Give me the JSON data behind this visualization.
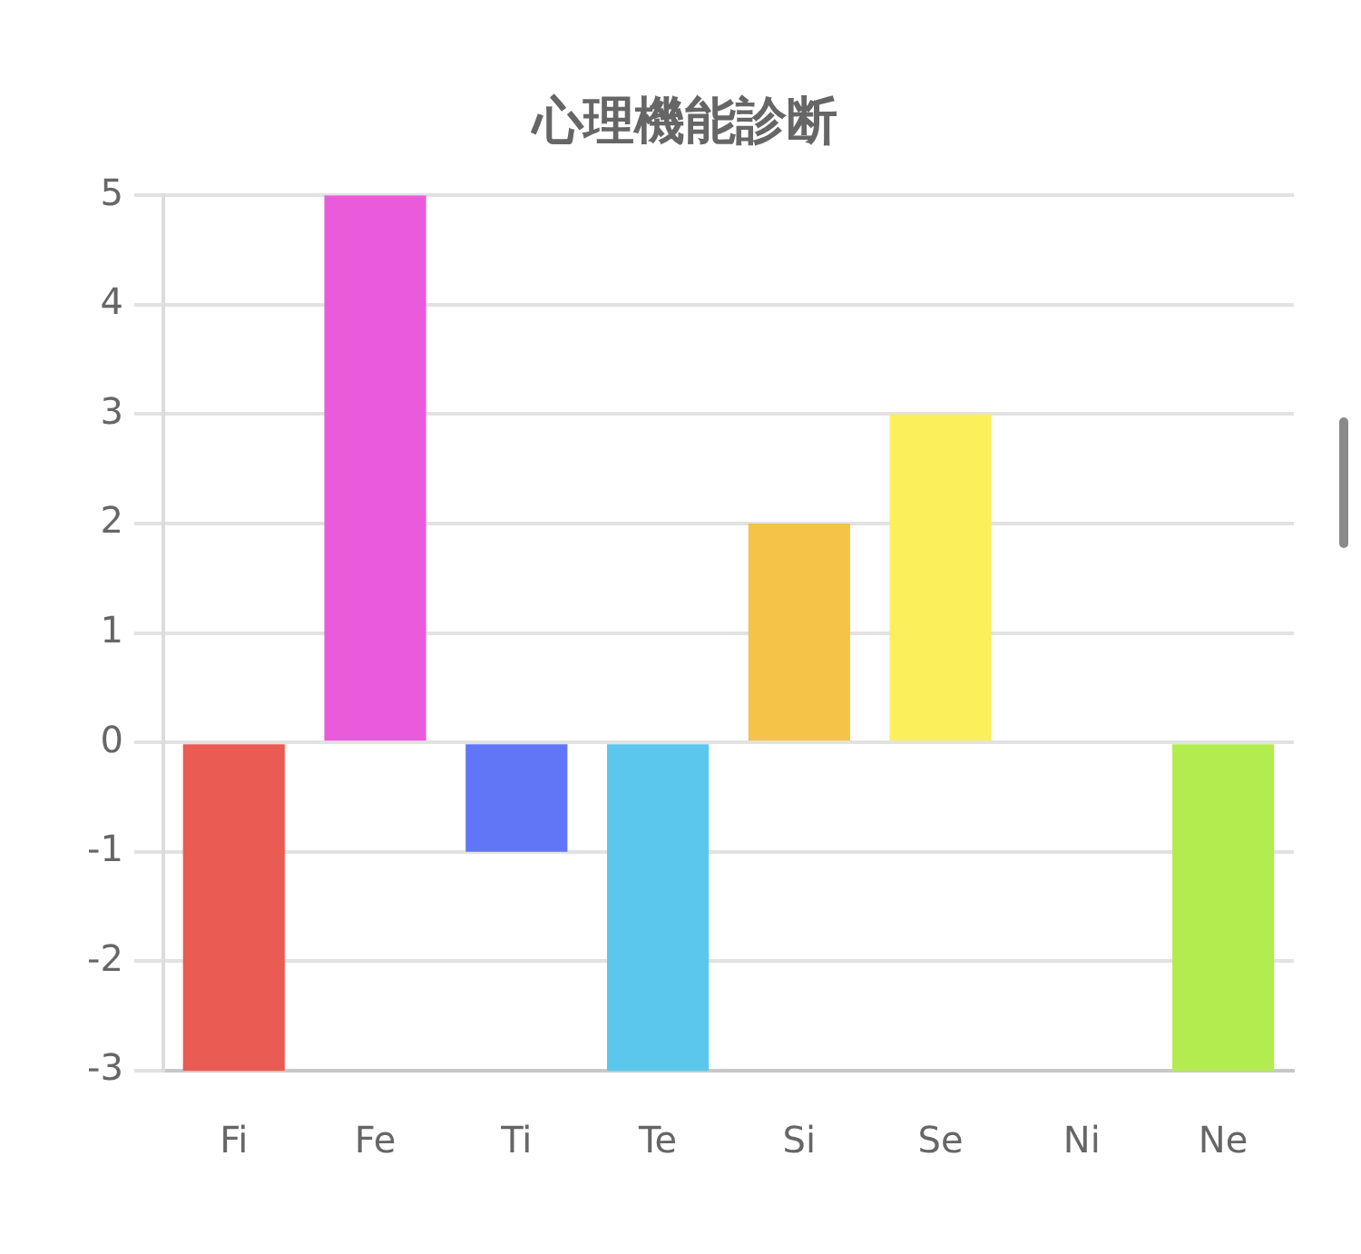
{
  "chart_data": {
    "type": "bar",
    "title": "心理機能診断",
    "categories": [
      "Fi",
      "Fe",
      "Ti",
      "Te",
      "Si",
      "Se",
      "Ni",
      "Ne"
    ],
    "values": [
      -3,
      5,
      -1,
      -3,
      2,
      3,
      0,
      -3
    ],
    "colors": [
      "#ea5b53",
      "#ea5bdc",
      "#6076f6",
      "#5bc7ed",
      "#f4c347",
      "#fcef5c",
      null,
      "#b3ec4f"
    ],
    "ylim": [
      -3,
      5
    ],
    "yticks": [
      -3,
      -2,
      -1,
      0,
      1,
      2,
      3,
      4,
      5
    ],
    "grid": "y"
  }
}
